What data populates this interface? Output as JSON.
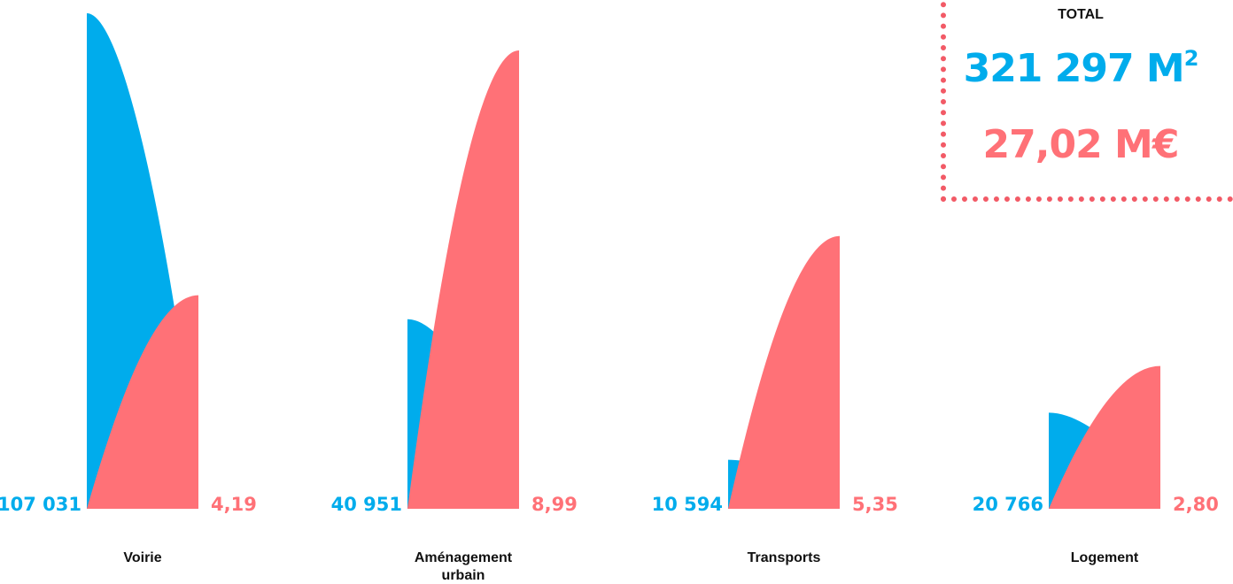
{
  "colors": {
    "area": "#00acec",
    "cost": "#ff7177",
    "text": "#111111",
    "border": "#f25a66"
  },
  "total": {
    "label": "TOTAL",
    "area_value": "321 297 M",
    "area_unit_sup": "2",
    "cost_value": "27,02 M€"
  },
  "chart_data": {
    "type": "area",
    "categories": [
      "Voirie",
      "Aménagement urbain",
      "Transports",
      "Logement"
    ],
    "category_lines": [
      [
        "Voirie"
      ],
      [
        "Aménagement",
        "urbain"
      ],
      [
        "Transports"
      ],
      [
        "Logement"
      ]
    ],
    "series": [
      {
        "values": [
          107031,
          40951,
          10594,
          20766
        ],
        "labels": [
          "107 031",
          "40 951",
          "10 594",
          "20 766"
        ]
      },
      {
        "values": [
          4.19,
          8.99,
          5.35,
          2.8
        ],
        "labels": [
          "4,19",
          "8,99",
          "5,35",
          "2,80"
        ]
      }
    ]
  }
}
